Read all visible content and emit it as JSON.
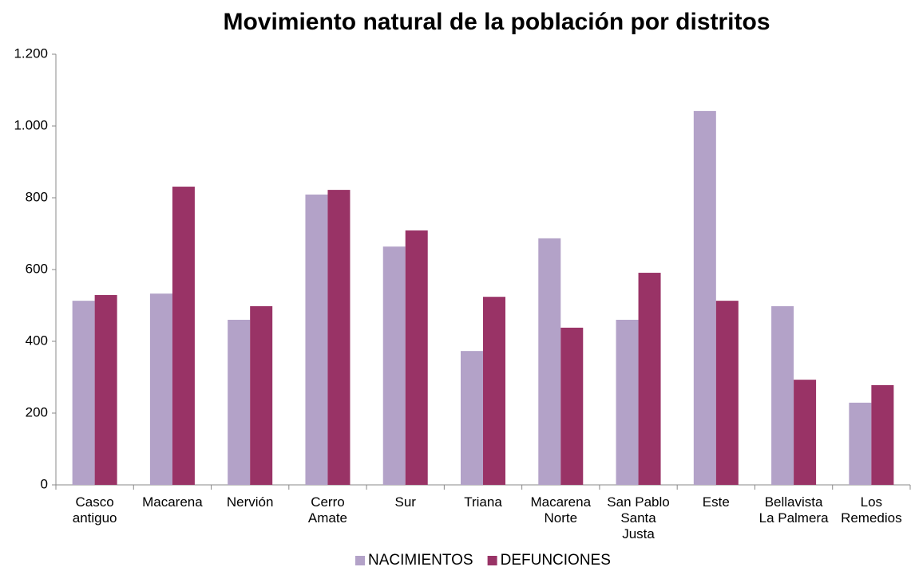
{
  "chart_data": {
    "type": "bar",
    "title": "Movimiento natural de la población por distritos",
    "categories": [
      "Casco\nantiguo",
      "Macarena",
      "Nervión",
      "Cerro\nAmate",
      "Sur",
      "Triana",
      "Macarena\nNorte",
      "San Pablo\nSanta\nJusta",
      "Este",
      "Bellavista\nLa Palmera",
      "Los\nRemedios"
    ],
    "series": [
      {
        "name": "NACIMIENTOS",
        "color": "#b3a2c8",
        "values": [
          513,
          533,
          460,
          809,
          664,
          373,
          687,
          460,
          1042,
          498,
          229
        ]
      },
      {
        "name": "DEFUNCIONES",
        "color": "#993366",
        "values": [
          529,
          831,
          498,
          822,
          709,
          524,
          438,
          591,
          513,
          293,
          278
        ]
      }
    ],
    "ylim": [
      0,
      1200
    ],
    "yticks": [
      0,
      200,
      400,
      600,
      800,
      {
        "value": 1000,
        "label": "1.000"
      },
      {
        "value": 1200,
        "label": "1.200"
      }
    ],
    "grid": false,
    "legend": "bottom"
  }
}
